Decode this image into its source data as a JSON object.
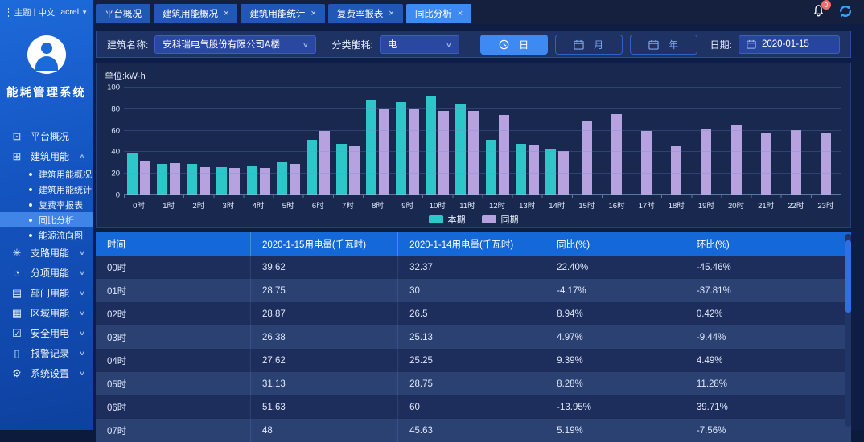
{
  "colors": {
    "accent": "#3d8af2",
    "series_current": "#2ec7c9",
    "series_previous": "#b6a2de",
    "badge": "#f56c6c",
    "table_header": "#1568d8"
  },
  "topbar": {
    "theme_label": "主题",
    "lang_label": "中文",
    "user_label": "acrel",
    "notification_count": "0",
    "tabs": [
      {
        "label": "平台概况",
        "closable": false,
        "active": false
      },
      {
        "label": "建筑用能概况",
        "closable": true,
        "active": false
      },
      {
        "label": "建筑用能统计",
        "closable": true,
        "active": false
      },
      {
        "label": "复费率报表",
        "closable": true,
        "active": false
      },
      {
        "label": "同比分析",
        "closable": true,
        "active": true
      }
    ]
  },
  "sidebar": {
    "system_title": "能耗管理系统",
    "menu": [
      {
        "name": "platform-overview",
        "icon": "monitor-icon",
        "glyph": "⊡",
        "label": "平台概况",
        "children": null
      },
      {
        "name": "building-energy",
        "icon": "building-icon",
        "glyph": "⊞",
        "label": "建筑用能",
        "expanded": true,
        "children": [
          {
            "label": "建筑用能概况",
            "active": false
          },
          {
            "label": "建筑用能统计",
            "active": false
          },
          {
            "label": "复费率报表",
            "active": false
          },
          {
            "label": "同比分析",
            "active": true
          },
          {
            "label": "能源流向图",
            "active": false
          }
        ]
      },
      {
        "name": "branch-energy",
        "icon": "branch-icon",
        "glyph": "✳",
        "label": "支路用能",
        "children": null,
        "collapsed": true
      },
      {
        "name": "subentry-energy",
        "icon": "pie-icon",
        "glyph": "◔",
        "label": "分项用能",
        "children": null,
        "collapsed": true
      },
      {
        "name": "department-energy",
        "icon": "folder-icon",
        "glyph": "▤",
        "label": "部门用能",
        "children": null,
        "collapsed": true
      },
      {
        "name": "region-energy",
        "icon": "region-grid-icon",
        "glyph": "▦",
        "label": "区域用能",
        "children": null,
        "collapsed": true
      },
      {
        "name": "safety-power",
        "icon": "shield-check-icon",
        "glyph": "☑",
        "label": "安全用电",
        "children": null,
        "collapsed": true
      },
      {
        "name": "alarm-records",
        "icon": "document-icon",
        "glyph": "▯",
        "label": "报警记录",
        "children": null,
        "collapsed": true
      },
      {
        "name": "system-settings",
        "icon": "gear-icon",
        "glyph": "⚙",
        "label": "系统设置",
        "children": null,
        "collapsed": true
      }
    ]
  },
  "filters": {
    "building_label": "建筑名称:",
    "building_value": "安科瑞电气股份有限公司A楼",
    "energy_label": "分类能耗:",
    "energy_value": "电",
    "periods": [
      {
        "label": "日",
        "icon": "clock-icon",
        "active": true
      },
      {
        "label": "月",
        "icon": "calendar-icon",
        "active": false
      },
      {
        "label": "年",
        "icon": "calendar-icon",
        "active": false
      }
    ],
    "date_label": "日期:",
    "date_value": "2020-01-15"
  },
  "chart": {
    "unit_label": "单位:kW·h",
    "chart_data": {
      "type": "bar",
      "title": "",
      "xlabel": "",
      "ylabel": "kW·h",
      "ylim": [
        0,
        100
      ],
      "yticks": [
        0,
        20,
        40,
        60,
        80,
        100
      ],
      "grid": true,
      "legend_position": "bottom",
      "categories": [
        "0时",
        "1时",
        "2时",
        "3时",
        "4时",
        "5时",
        "6时",
        "7时",
        "8时",
        "9时",
        "10时",
        "11时",
        "12时",
        "13时",
        "14时",
        "15时",
        "16时",
        "17时",
        "18时",
        "19时",
        "20时",
        "21时",
        "22时",
        "23时"
      ],
      "series": [
        {
          "name": "本期",
          "color": "#2ec7c9",
          "values": [
            39.62,
            28.75,
            28.87,
            26.38,
            27.62,
            31.13,
            51.63,
            48,
            88.5,
            86.5,
            92.5,
            84.5,
            51.5,
            48,
            42.5,
            null,
            null,
            null,
            null,
            null,
            null,
            null,
            null,
            null
          ]
        },
        {
          "name": "同期",
          "color": "#b6a2de",
          "values": [
            32.37,
            30,
            26.5,
            25.13,
            25.25,
            28.75,
            60,
            45.63,
            80,
            80,
            78.5,
            78,
            74.5,
            46,
            41,
            68.5,
            75.5,
            60,
            45.5,
            62,
            65,
            58.5,
            60.5,
            57.5
          ]
        }
      ]
    }
  },
  "table": {
    "headers": [
      "时间",
      "2020-1-15用电量(千瓦时)",
      "2020-1-14用电量(千瓦时)",
      "同比(%)",
      "环比(%)"
    ],
    "rows": [
      [
        "00时",
        "39.62",
        "32.37",
        "22.40%",
        "-45.46%"
      ],
      [
        "01时",
        "28.75",
        "30",
        "-4.17%",
        "-37.81%"
      ],
      [
        "02时",
        "28.87",
        "26.5",
        "8.94%",
        "0.42%"
      ],
      [
        "03时",
        "26.38",
        "25.13",
        "4.97%",
        "-9.44%"
      ],
      [
        "04时",
        "27.62",
        "25.25",
        "9.39%",
        "4.49%"
      ],
      [
        "05时",
        "31.13",
        "28.75",
        "8.28%",
        "11.28%"
      ],
      [
        "06时",
        "51.63",
        "60",
        "-13.95%",
        "39.71%"
      ],
      [
        "07时",
        "48",
        "45.63",
        "5.19%",
        "-7.56%"
      ]
    ]
  }
}
